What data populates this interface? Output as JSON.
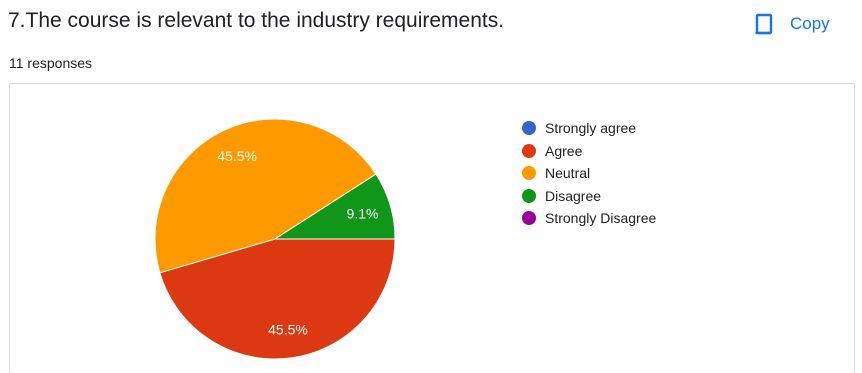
{
  "question": {
    "title": "7.The course is relevant to the industry requirements.",
    "responses": "11 responses"
  },
  "toolbar": {
    "copy_label": "Copy",
    "copy_icon": "copy-icon"
  },
  "colors": {
    "accent": "#1a73e8"
  },
  "chart_data": {
    "type": "pie",
    "total_responses": 11,
    "slices": [
      {
        "name": "Strongly agree",
        "value": 0,
        "percent": 0,
        "label": "",
        "color": "#3366cc"
      },
      {
        "name": "Agree",
        "value": 5,
        "percent": 45.5,
        "label": "45.5%",
        "color": "#dc3912"
      },
      {
        "name": "Neutral",
        "value": 5,
        "percent": 45.5,
        "label": "45.5%",
        "color": "#ff9900"
      },
      {
        "name": "Disagree",
        "value": 1,
        "percent": 9.1,
        "label": "9.1%",
        "color": "#109618"
      },
      {
        "name": "Strongly Disagree",
        "value": 0,
        "percent": 0,
        "label": "",
        "color": "#990099"
      }
    ],
    "legend_position": "right"
  }
}
